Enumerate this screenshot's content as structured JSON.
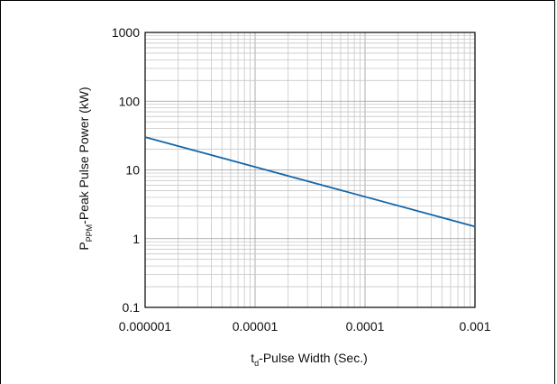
{
  "chart_data": {
    "type": "line",
    "title": "",
    "xscale": "log",
    "yscale": "log",
    "xlim": [
      1e-06,
      0.001
    ],
    "ylim": [
      0.1,
      1000
    ],
    "grid": true,
    "x_ticks": [
      1e-06,
      1e-05,
      0.0001,
      0.001
    ],
    "x_tick_labels": [
      "0.000001",
      "0.00001",
      "0.0001",
      "0.001"
    ],
    "y_ticks": [
      0.1,
      1,
      10,
      100,
      1000
    ],
    "y_tick_labels": [
      "0.1",
      "1",
      "10",
      "100",
      "1000"
    ],
    "xlabel": {
      "main": "t",
      "sub": "d",
      "rest": "-Pulse Width (Sec.)"
    },
    "ylabel": {
      "main": "P",
      "sub": "PPM",
      "rest": "-Peak Pulse Power (kW)"
    },
    "series": [
      {
        "color": "#1565a7",
        "points": [
          {
            "x": 1e-06,
            "y": 30
          },
          {
            "x": 0.001,
            "y": 1.5
          }
        ]
      }
    ]
  }
}
